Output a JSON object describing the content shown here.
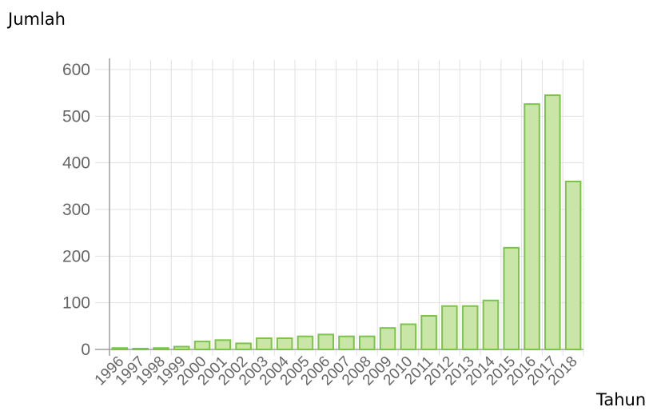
{
  "chart_data": {
    "type": "bar",
    "ylabel": "Jumlah",
    "xlabel": "Tahun",
    "categories": [
      "1996",
      "1997",
      "1998",
      "1999",
      "2000",
      "2001",
      "2002",
      "2003",
      "2004",
      "2005",
      "2006",
      "2007",
      "2008",
      "2009",
      "2010",
      "2011",
      "2012",
      "2013",
      "2014",
      "2015",
      "2016",
      "2017",
      "2018"
    ],
    "values": [
      3,
      0,
      3,
      6,
      17,
      20,
      13,
      24,
      24,
      28,
      32,
      28,
      28,
      46,
      54,
      72,
      93,
      93,
      105,
      218,
      526,
      545,
      360
    ],
    "ylim": [
      0,
      600
    ],
    "yticks": [
      "0",
      "100",
      "200",
      "300",
      "400",
      "500",
      "600"
    ],
    "grid": true,
    "colors": {
      "bar_fill": "#c9e6a8",
      "bar_stroke": "#7cc34a",
      "grid": "#e0e0e0",
      "axis": "#9e9e9e"
    }
  }
}
